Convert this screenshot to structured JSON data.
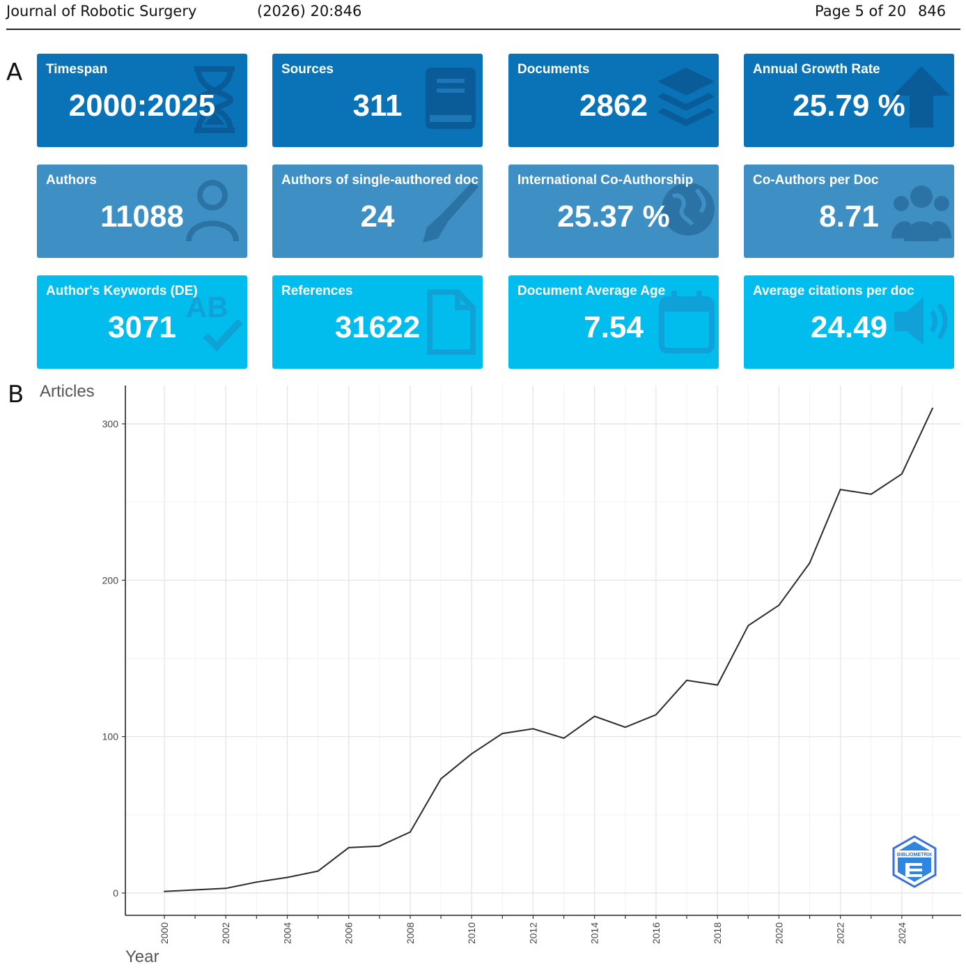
{
  "header": {
    "journal": "Journal of Robotic Surgery",
    "volume": "(2026)  20:846",
    "page": "Page 5 of 20",
    "article_no": "846"
  },
  "panels": {
    "a": "A",
    "b": "B"
  },
  "cards": [
    {
      "title": "Timespan",
      "value": "2000:2025",
      "icon": "hourglass-icon",
      "tone": "dark"
    },
    {
      "title": "Sources",
      "value": "311",
      "icon": "book-icon",
      "tone": "dark"
    },
    {
      "title": "Documents",
      "value": "2862",
      "icon": "layers-icon",
      "tone": "dark"
    },
    {
      "title": "Annual Growth Rate",
      "value": "25.79 %",
      "icon": "arrow-up-icon",
      "tone": "dark"
    },
    {
      "title": "Authors",
      "value": "11088",
      "icon": "user-icon",
      "tone": "mid"
    },
    {
      "title": "Authors of single-authored doc",
      "value": "24",
      "icon": "pen-nib-icon",
      "tone": "mid"
    },
    {
      "title": "International Co-Authorship",
      "value": "25.37 %",
      "icon": "globe-icon",
      "tone": "mid"
    },
    {
      "title": "Co-Authors per Doc",
      "value": "8.71",
      "icon": "users-icon",
      "tone": "mid"
    },
    {
      "title": "Author's Keywords (DE)",
      "value": "3071",
      "icon": "spell-check-icon",
      "tone": "light"
    },
    {
      "title": "References",
      "value": "31622",
      "icon": "file-icon",
      "tone": "light"
    },
    {
      "title": "Document Average Age",
      "value": "7.54",
      "icon": "calendar-icon",
      "tone": "light"
    },
    {
      "title": "Average citations per doc",
      "value": "24.49",
      "icon": "speaker-icon",
      "tone": "light"
    }
  ],
  "colors": {
    "dark": "#0a72b6",
    "mid": "#3e8fc4",
    "light": "#00bdee",
    "line": "#2a2a2a",
    "grid": "#ebebeb"
  },
  "logo_text": "BIBLIOMETRIX",
  "chart_data": {
    "type": "line",
    "xlabel": "Year",
    "ylabel": "Articles",
    "xlim": [
      2000,
      2025
    ],
    "ylim": [
      0,
      310
    ],
    "yticks": [
      0,
      100,
      200,
      300
    ],
    "xticks": [
      2000,
      2002,
      2004,
      2006,
      2008,
      2010,
      2012,
      2014,
      2016,
      2018,
      2020,
      2022,
      2024
    ],
    "grid": true,
    "x": [
      2000,
      2001,
      2002,
      2003,
      2004,
      2005,
      2006,
      2007,
      2008,
      2009,
      2010,
      2011,
      2012,
      2013,
      2014,
      2015,
      2016,
      2017,
      2018,
      2019,
      2020,
      2021,
      2022,
      2023,
      2024,
      2025
    ],
    "y": [
      1,
      2,
      3,
      7,
      10,
      14,
      29,
      30,
      39,
      73,
      89,
      102,
      105,
      99,
      113,
      106,
      114,
      136,
      133,
      171,
      184,
      211,
      258,
      255,
      268,
      310
    ]
  }
}
